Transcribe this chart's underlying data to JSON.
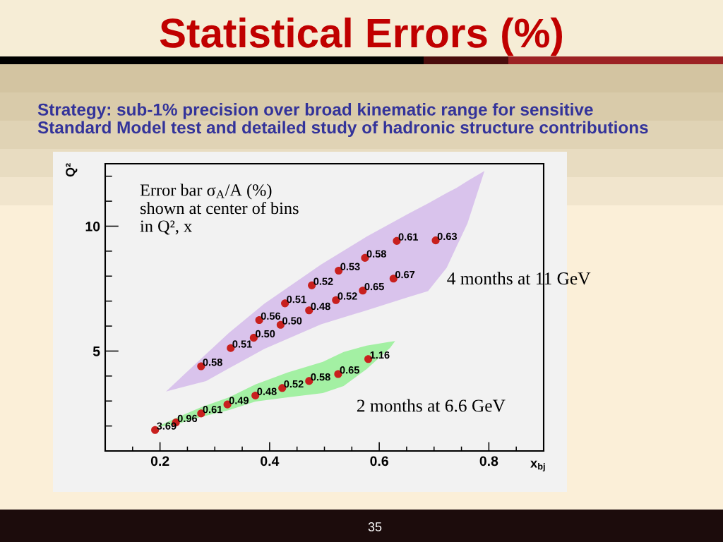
{
  "chart_data": {
    "type": "scatter",
    "title": "Statistical Errors (%)",
    "subtitle": "Strategy: sub-1% precision over broad kinematic range for sensitive Standard Model test and detailed study of hadronic structure contributions",
    "xlabel": "x$_{bj}$",
    "ylabel": "Q²",
    "xlim": [
      0.1,
      0.9
    ],
    "ylim": [
      1,
      12.5
    ],
    "xticks": [
      {
        "value": 0.15,
        "label": null
      },
      0.2,
      {
        "value": 0.25,
        "label": null
      },
      {
        "value": 0.3,
        "label": null
      },
      {
        "value": 0.35,
        "label": null
      },
      0.4,
      {
        "value": 0.45,
        "label": null
      },
      {
        "value": 0.5,
        "label": null
      },
      {
        "value": 0.55,
        "label": null
      },
      0.6,
      {
        "value": 0.65,
        "label": null
      },
      {
        "value": 0.7,
        "label": null
      },
      {
        "value": 0.75,
        "label": null
      },
      0.8,
      {
        "value": 0.85,
        "label": null
      }
    ],
    "yticks": [
      {
        "value": 2,
        "label": null
      },
      {
        "value": 3,
        "label": null
      },
      {
        "value": 4,
        "label": null
      },
      5,
      {
        "value": 6,
        "label": null
      },
      {
        "value": 7,
        "label": null
      },
      {
        "value": 8,
        "label": null
      },
      {
        "value": 9,
        "label": null
      },
      10,
      {
        "value": 11,
        "label": null
      },
      {
        "value": 12,
        "label": null
      }
    ],
    "series": [
      {
        "type": "area",
        "color": "#d9c3ec",
        "x": [
          0.211,
          0.284,
          0.326,
          0.39,
          0.494,
          0.577,
          0.654,
          0.689,
          0.723,
          0.741,
          0.761,
          0.792,
          0.761,
          0.741,
          0.723,
          0.689,
          0.654,
          0.577,
          0.494,
          0.39,
          0.326,
          0.284
        ],
        "values": [
          3.38,
          4.88,
          5.73,
          6.89,
          8.47,
          9.58,
          10.51,
          10.91,
          11.33,
          11.53,
          11.81,
          12.21,
          10.11,
          9.18,
          8.33,
          7.4,
          7.17,
          6.63,
          6.07,
          5.08,
          4.31,
          3.8
        ]
      },
      {
        "type": "area",
        "color": "#a3f0a3",
        "x": [
          0.194,
          0.227,
          0.275,
          0.326,
          0.374,
          0.433,
          0.497,
          0.535,
          0.577,
          0.62,
          0.629,
          0.62,
          0.577,
          0.535,
          0.497,
          0.433,
          0.374,
          0.326,
          0.275,
          0.227
        ],
        "values": [
          1.96,
          2.3,
          2.75,
          3.15,
          3.66,
          4.14,
          4.57,
          4.96,
          5.22,
          5.37,
          5.4,
          5.13,
          4.28,
          3.6,
          3.32,
          3.15,
          2.98,
          2.64,
          2.36,
          2.05
        ]
      },
      {
        "color": "#c8201e",
        "marker": "circle",
        "x": [
          0.275,
          0.329,
          0.371,
          0.381,
          0.42,
          0.428,
          0.472,
          0.477,
          0.521,
          0.526,
          0.57,
          0.574,
          0.626,
          0.632,
          0.703
        ],
        "values": [
          4.39,
          5.12,
          5.53,
          6.24,
          6.05,
          6.91,
          6.63,
          7.63,
          7.04,
          8.22,
          7.42,
          8.73,
          7.9,
          9.41,
          9.43
        ]
      },
      {
        "color": "#c8201e",
        "marker": "circle",
        "x": [
          0.191,
          0.229,
          0.275,
          0.323,
          0.374,
          0.423,
          0.472,
          0.525,
          0.58
        ],
        "values": [
          1.84,
          2.14,
          2.5,
          2.86,
          3.22,
          3.52,
          3.8,
          4.08,
          4.68
        ]
      }
    ],
    "annotations": [
      "Error bar σ$_{A}$/A (%) shown at center of bins in Q², x",
      "4 months at 11 GeV",
      "2 months at 6.6 GeV",
      "35",
      {
        "text": "0.58",
        "x": 0.275,
        "y": 4.39
      },
      {
        "text": "0.51",
        "x": 0.329,
        "y": 5.12
      },
      {
        "text": "0.50",
        "x": 0.371,
        "y": 5.53
      },
      {
        "text": "0.56",
        "x": 0.381,
        "y": 6.24
      },
      {
        "text": "0.50",
        "x": 0.42,
        "y": 6.05
      },
      {
        "text": "0.51",
        "x": 0.428,
        "y": 6.91
      },
      {
        "text": "0.48",
        "x": 0.472,
        "y": 6.63
      },
      {
        "text": "0.52",
        "x": 0.477,
        "y": 7.63
      },
      {
        "text": "0.52",
        "x": 0.521,
        "y": 7.04
      },
      {
        "text": "0.53",
        "x": 0.526,
        "y": 8.22
      },
      {
        "text": "0.65",
        "x": 0.57,
        "y": 7.42
      },
      {
        "text": "0.58",
        "x": 0.574,
        "y": 8.73
      },
      {
        "text": "0.67",
        "x": 0.626,
        "y": 7.9
      },
      {
        "text": "0.61",
        "x": 0.632,
        "y": 9.41
      },
      {
        "text": "0.63",
        "x": 0.703,
        "y": 9.43
      },
      {
        "text": "3.69",
        "x": 0.191,
        "y": 1.84
      },
      {
        "text": "0.96",
        "x": 0.229,
        "y": 2.14
      },
      {
        "text": "0.61",
        "x": 0.275,
        "y": 2.5
      },
      {
        "text": "0.49",
        "x": 0.323,
        "y": 2.86
      },
      {
        "text": "0.48",
        "x": 0.374,
        "y": 3.22
      },
      {
        "text": "0.52",
        "x": 0.423,
        "y": 3.52
      },
      {
        "text": "0.58",
        "x": 0.472,
        "y": 3.8
      },
      {
        "text": "0.65",
        "x": 0.525,
        "y": 4.08
      },
      {
        "text": "1.16",
        "x": 0.58,
        "y": 4.68
      }
    ]
  }
}
